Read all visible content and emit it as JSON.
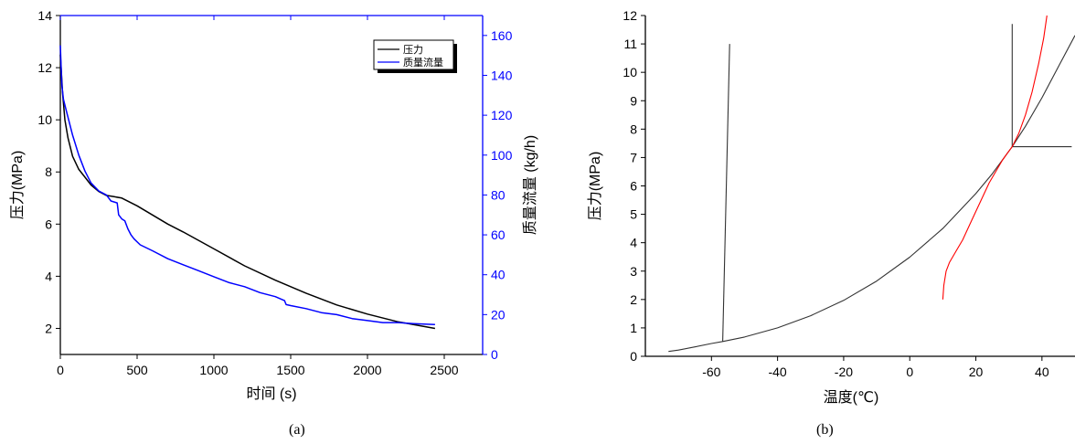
{
  "chart_data": [
    {
      "type": "line",
      "caption": "(a)",
      "xlabel": "时间 (s)",
      "xlim": [
        0,
        2750
      ],
      "xticks": [
        0,
        500,
        1000,
        1500,
        2000,
        2500
      ],
      "ylabel_left": "压力(MPa)",
      "ylim_left": [
        1,
        14
      ],
      "yticks_left": [
        2,
        4,
        6,
        8,
        10,
        12,
        14
      ],
      "ylabel_right": "质量流量 (kg/h)",
      "ylim_right": [
        0,
        170
      ],
      "yticks_right": [
        0,
        20,
        40,
        60,
        80,
        100,
        120,
        140,
        160
      ],
      "right_axis_color": "#0000ff",
      "legend_position": "top-right",
      "series": [
        {
          "name": "压力",
          "axis": "left",
          "color": "#000000",
          "x": [
            0,
            15,
            30,
            50,
            80,
            120,
            160,
            200,
            250,
            300,
            350,
            400,
            450,
            500,
            600,
            700,
            800,
            1000,
            1200,
            1400,
            1600,
            1800,
            2000,
            2200,
            2440
          ],
          "y": [
            12.5,
            11.0,
            10.0,
            9.3,
            8.6,
            8.1,
            7.8,
            7.5,
            7.25,
            7.1,
            7.05,
            7.0,
            6.85,
            6.7,
            6.35,
            6.0,
            5.7,
            5.05,
            4.4,
            3.85,
            3.35,
            2.9,
            2.55,
            2.25,
            2.0
          ]
        },
        {
          "name": "质量流量",
          "axis": "right",
          "color": "#0000ff",
          "x": [
            0,
            5,
            10,
            20,
            40,
            80,
            120,
            160,
            200,
            250,
            300,
            330,
            370,
            380,
            400,
            420,
            440,
            460,
            480,
            520,
            600,
            700,
            800,
            900,
            1000,
            1100,
            1200,
            1300,
            1400,
            1460,
            1470,
            1500,
            1600,
            1700,
            1800,
            1900,
            2000,
            2100,
            2200,
            2300,
            2440
          ],
          "y": [
            155,
            145,
            135,
            128,
            122,
            110,
            100,
            92,
            86,
            82,
            80,
            77,
            76,
            70,
            68,
            67,
            63,
            60,
            58,
            55,
            52,
            48,
            45,
            42,
            39,
            36,
            34,
            31,
            29,
            27,
            25,
            24.5,
            23,
            21,
            20,
            18,
            17,
            16,
            16,
            15.5,
            15
          ]
        }
      ]
    },
    {
      "type": "line",
      "caption": "(b)",
      "xlabel": "温度(℃)",
      "xlim": [
        -80,
        50
      ],
      "xticks": [
        -60,
        -40,
        -20,
        0,
        20,
        40
      ],
      "ylabel": "压力(MPa)",
      "ylim": [
        0,
        12
      ],
      "yticks": [
        0,
        1,
        2,
        3,
        4,
        5,
        6,
        7,
        8,
        9,
        10,
        11,
        12
      ],
      "series": [
        {
          "color": "#333333",
          "x": [
            -73,
            -70,
            -65,
            -60,
            -56.6,
            -50,
            -40,
            -30,
            -20,
            -10,
            0,
            10,
            20,
            25,
            31,
            35,
            40,
            45,
            50
          ],
          "y": [
            0.17,
            0.22,
            0.33,
            0.45,
            0.52,
            0.68,
            1.0,
            1.43,
            1.97,
            2.65,
            3.49,
            4.5,
            5.73,
            6.43,
            7.38,
            8.1,
            9.1,
            10.2,
            11.3
          ]
        },
        {
          "color": "#333333",
          "x": [
            -56.6,
            -54.5
          ],
          "y": [
            0.52,
            11.0
          ]
        },
        {
          "color": "#333333",
          "x": [
            31.0,
            31.0
          ],
          "y": [
            7.38,
            11.7
          ]
        },
        {
          "color": "#333333",
          "x": [
            31.0,
            49.0
          ],
          "y": [
            7.38,
            7.38
          ]
        },
        {
          "color": "#ff0000",
          "x": [
            10,
            10.3,
            11,
            12,
            14,
            16,
            18,
            20,
            22,
            24,
            26,
            28,
            29.5,
            31,
            33,
            35,
            37,
            39,
            40.5,
            41.5
          ],
          "y": [
            2.0,
            2.5,
            3.0,
            3.3,
            3.7,
            4.1,
            4.6,
            5.1,
            5.6,
            6.1,
            6.5,
            6.9,
            7.15,
            7.38,
            7.85,
            8.5,
            9.3,
            10.3,
            11.2,
            12.0
          ]
        }
      ]
    }
  ]
}
